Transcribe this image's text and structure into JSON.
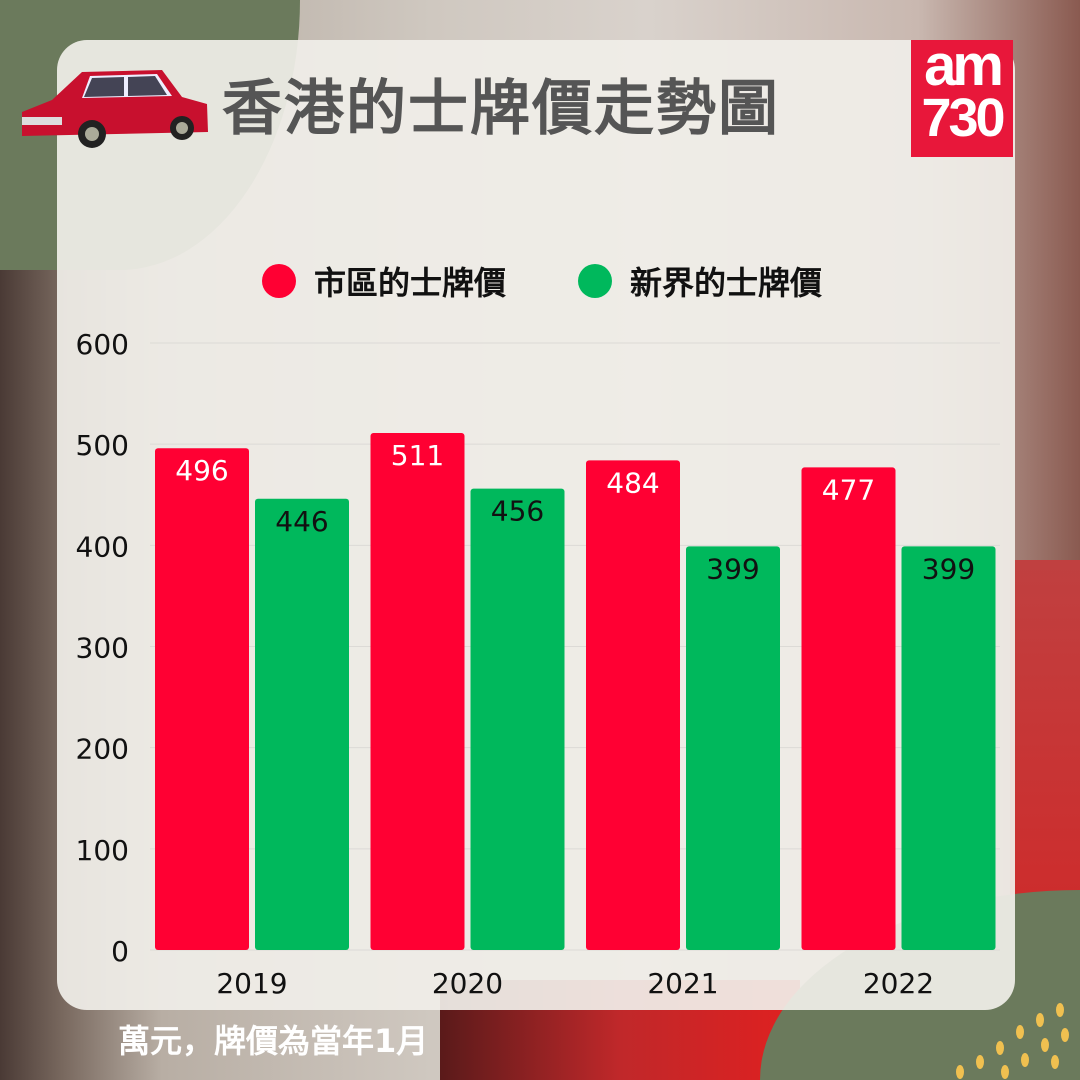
{
  "title": "香港的士牌價走勢圖",
  "logo": {
    "line1": "am",
    "line2": "730"
  },
  "note": "萬元，牌價為當年1月",
  "colors": {
    "urban": "#ff0033",
    "nt": "#00b85c",
    "card": "#f0eee8",
    "accent": "#6b7a5c"
  },
  "chart_data": {
    "type": "bar",
    "title": "香港的士牌價走勢圖",
    "categories": [
      "2019",
      "2020",
      "2021",
      "2022"
    ],
    "series": [
      {
        "name": "市區的士牌價",
        "color": "#ff0033",
        "values": [
          496,
          511,
          484,
          477
        ]
      },
      {
        "name": "新界的士牌價",
        "color": "#00b85c",
        "values": [
          446,
          456,
          399,
          399
        ]
      }
    ],
    "ylim": [
      0,
      600
    ],
    "yticks": [
      "0",
      "100",
      "200",
      "300",
      "400",
      "500",
      "600"
    ],
    "ylabel": "",
    "xlabel": "",
    "unit_note": "萬元，牌價為當年1月",
    "grid": true,
    "legend": "top"
  }
}
